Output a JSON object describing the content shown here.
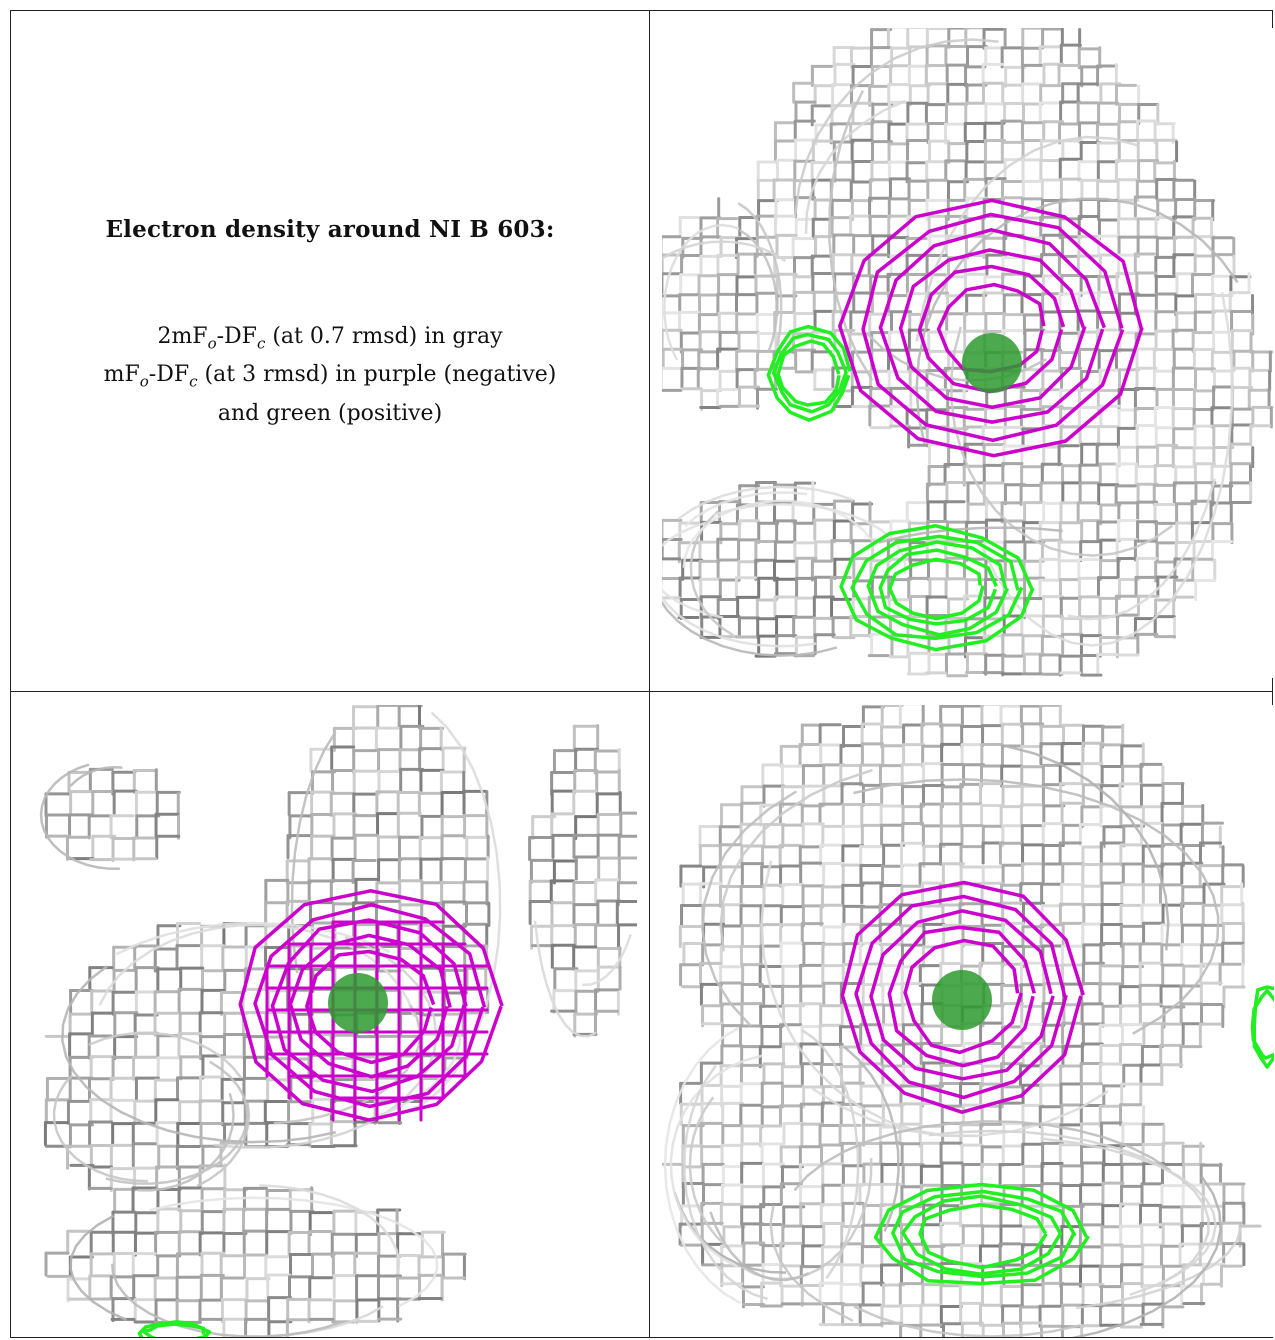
{
  "figure": {
    "heading": "Electron density around NI B 603:",
    "legend": [
      {
        "pre": "2mF",
        "sub1": "o",
        "mid": "-DF",
        "sub2": "c",
        "post": " (at 0.7 rmsd) in gray"
      },
      {
        "pre": "mF",
        "sub1": "o",
        "mid": "-DF",
        "sub2": "c",
        "post": " (at 3 rmsd) in purple (negative)"
      },
      {
        "text": "and green (positive)"
      }
    ]
  },
  "colors": {
    "mesh_2fofc": "#9a9a9a",
    "mesh_fofc_negative": "#cc00cc",
    "mesh_fofc_positive": "#22ee22",
    "atom": "#2e9a2e",
    "frame": "#222222",
    "background": "#ffffff"
  },
  "panels": [
    {
      "view": "top-right"
    },
    {
      "view": "bottom-left"
    },
    {
      "view": "bottom-right"
    }
  ]
}
